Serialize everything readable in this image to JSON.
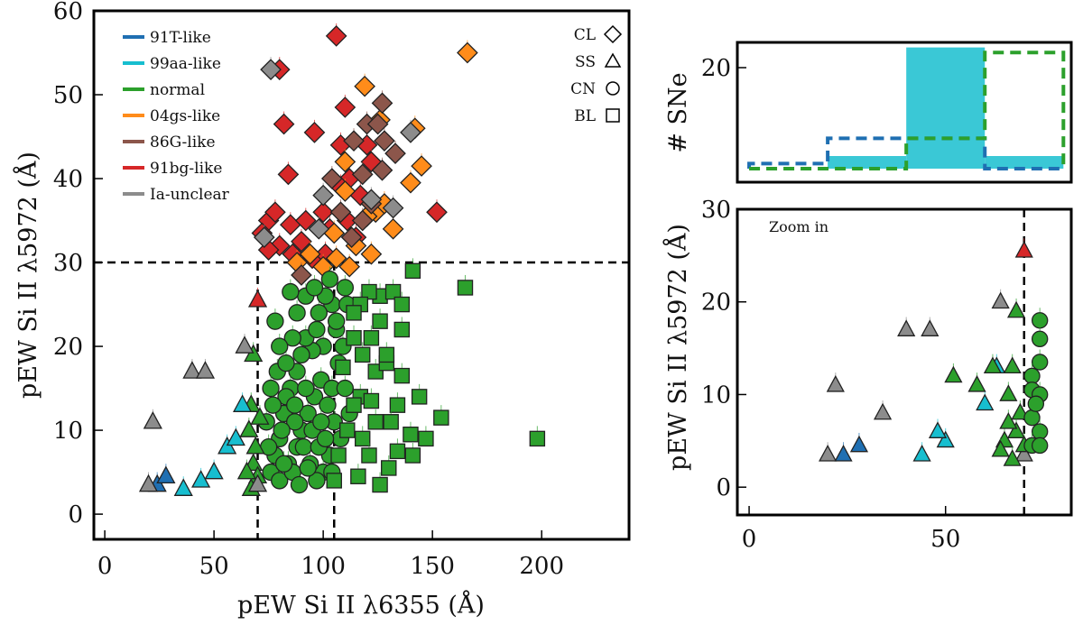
{
  "colors": {
    "91T-like": "#1f6fb2",
    "99aa-like": "#17becf",
    "normal": "#2ca02c",
    "04gs-like": "#ff8c1a",
    "86G-like": "#8c564b",
    "91bg-like": "#d62728",
    "Ia-unclear": "#8c8c8c"
  },
  "legend": {
    "classes": [
      "91T-like",
      "99aa-like",
      "normal",
      "04gs-like",
      "86G-like",
      "91bg-like",
      "Ia-unclear"
    ],
    "markers": [
      {
        "label": "CL",
        "shape": "diamond"
      },
      {
        "label": "SS",
        "shape": "triangle"
      },
      {
        "label": "CN",
        "shape": "circle"
      },
      {
        "label": "BL",
        "shape": "square"
      }
    ]
  },
  "chart_data": [
    {
      "id": "main",
      "type": "scatter",
      "title": "",
      "xlabel": "pEW Si II λ6355 (Å)",
      "ylabel": "pEW Si II λ5972 (Å)",
      "xlim": [
        -5,
        240
      ],
      "ylim": [
        -3,
        60
      ],
      "xticks": [
        0,
        50,
        100,
        150,
        200
      ],
      "yticks": [
        0,
        10,
        20,
        30,
        40,
        50,
        60
      ],
      "reference_lines": {
        "horizontal": [
          30
        ],
        "vertical": [
          70,
          105
        ]
      },
      "series": [
        {
          "name": "91bg-like",
          "marker": "diamond",
          "points": [
            [
              106,
              57
            ],
            [
              80,
              53
            ],
            [
              82,
              46.5
            ],
            [
              84,
              40.5
            ],
            [
              96,
              45.5
            ],
            [
              110,
              48.5
            ],
            [
              108,
              44
            ],
            [
              120,
              44
            ],
            [
              122,
              42
            ],
            [
              112,
              40
            ],
            [
              108,
              39
            ],
            [
              117,
              38
            ],
            [
              152,
              36
            ],
            [
              75,
              35
            ],
            [
              78,
              36
            ],
            [
              85,
              34.5
            ],
            [
              92,
              35
            ],
            [
              103,
              34
            ],
            [
              111,
              35
            ],
            [
              115,
              33
            ],
            [
              80,
              32
            ],
            [
              86,
              31
            ],
            [
              95,
              30.5
            ],
            [
              101,
              31
            ],
            [
              72,
              33.5
            ],
            [
              75,
              31.5
            ],
            [
              90,
              32.5
            ],
            [
              100,
              36
            ]
          ]
        },
        {
          "name": "04gs-like",
          "marker": "diamond",
          "points": [
            [
              166,
              55
            ],
            [
              119,
              51
            ],
            [
              126,
              47
            ],
            [
              142,
              46
            ],
            [
              145,
              41.5
            ],
            [
              110,
              42
            ],
            [
              140,
              39.5
            ],
            [
              124,
              36
            ],
            [
              128,
              37
            ],
            [
              110,
              38.5
            ],
            [
              120,
              35.5
            ],
            [
              105,
              33.5
            ],
            [
              115,
              32
            ],
            [
              132,
              34
            ],
            [
              100,
              29.5
            ],
            [
              88,
              30
            ],
            [
              106,
              30.5
            ],
            [
              112,
              29.5
            ],
            [
              122,
              31
            ],
            [
              94,
              31
            ]
          ]
        },
        {
          "name": "86G-like",
          "marker": "diamond",
          "points": [
            [
              127,
              49
            ],
            [
              120,
              46.5
            ],
            [
              125,
              46.5
            ],
            [
              128,
              44.5
            ],
            [
              133,
              43
            ],
            [
              114,
              44.5
            ],
            [
              118,
              40.5
            ],
            [
              104,
              40
            ],
            [
              127,
              41
            ],
            [
              122,
              37
            ],
            [
              108,
              36
            ],
            [
              90,
              28.5
            ],
            [
              118,
              35
            ],
            [
              113,
              33
            ]
          ]
        },
        {
          "name": "Ia-unclear",
          "marker": "diamond",
          "points": [
            [
              76,
              53
            ],
            [
              140,
              45.5
            ],
            [
              122,
              37.5
            ],
            [
              132,
              36.5
            ],
            [
              73,
              33
            ],
            [
              100,
              38
            ],
            [
              98,
              34
            ]
          ]
        },
        {
          "name": "normal",
          "marker": "circle",
          "points": [
            [
              110,
              27
            ],
            [
              104,
              25
            ],
            [
              98,
              24
            ],
            [
              106,
              22
            ],
            [
              100,
              20
            ],
            [
              95,
              19.5
            ],
            [
              92,
              21
            ],
            [
              88,
              17
            ],
            [
              85,
              15
            ],
            [
              82,
              12
            ],
            [
              80,
              9
            ],
            [
              78,
              7
            ],
            [
              76,
              5
            ],
            [
              80,
              4
            ],
            [
              84,
              6
            ],
            [
              88,
              8
            ],
            [
              90,
              10
            ],
            [
              93,
              12
            ],
            [
              96,
              14
            ],
            [
              99,
              16
            ],
            [
              102,
              13
            ],
            [
              105,
              11
            ],
            [
              108,
              9
            ],
            [
              103,
              7
            ],
            [
              100,
              5
            ],
            [
              97,
              4
            ],
            [
              94,
              6
            ],
            [
              91,
              8
            ],
            [
              87,
              11
            ],
            [
              83,
              14
            ],
            [
              79,
              17
            ],
            [
              76,
              15
            ],
            [
              74,
              11
            ],
            [
              77,
              13
            ],
            [
              81,
              10
            ],
            [
              86,
              5
            ],
            [
              89,
              3.5
            ],
            [
              92,
              15
            ],
            [
              95,
              10
            ],
            [
              98,
              8
            ],
            [
              101,
              9
            ],
            [
              104,
              15
            ],
            [
              107,
              18
            ],
            [
              110,
              15
            ],
            [
              112,
              12
            ],
            [
              109,
              20
            ],
            [
              106,
              23
            ],
            [
              101,
              26
            ],
            [
              97,
              22
            ],
            [
              90,
              19
            ],
            [
              86,
              21
            ],
            [
              83,
              18
            ],
            [
              80,
              20
            ],
            [
              78,
              23
            ],
            [
              88,
              24
            ],
            [
              92,
              26
            ],
            [
              85,
              26.5
            ],
            [
              96,
              27
            ],
            [
              103,
              28
            ],
            [
              111,
              25
            ],
            [
              99,
              11
            ],
            [
              93,
              5.5
            ],
            [
              87,
              13
            ],
            [
              75,
              8
            ],
            [
              82,
              6
            ],
            [
              104,
              5
            ]
          ]
        },
        {
          "name": "normal",
          "marker": "square",
          "points": [
            [
              141,
              29
            ],
            [
              126,
              26
            ],
            [
              121,
              26.5
            ],
            [
              132,
              26.5
            ],
            [
              117,
              25
            ],
            [
              136,
              25
            ],
            [
              126,
              23
            ],
            [
              136,
              22
            ],
            [
              114,
              24
            ],
            [
              122,
              21
            ],
            [
              124,
              17
            ],
            [
              114,
              21
            ],
            [
              129,
              18
            ],
            [
              109,
              17.5
            ],
            [
              118,
              19
            ],
            [
              136,
              16.5
            ],
            [
              134,
              13
            ],
            [
              117,
              14
            ],
            [
              122,
              13.5
            ],
            [
              124,
              11
            ],
            [
              144,
              14
            ],
            [
              114,
              13
            ],
            [
              131,
              11
            ],
            [
              140,
              9.5
            ],
            [
              147,
              9
            ],
            [
              154,
              11.5
            ],
            [
              141,
              7
            ],
            [
              130,
              5.5
            ],
            [
              126,
              3.5
            ],
            [
              118,
              9
            ],
            [
              107,
              7
            ],
            [
              111,
              10
            ],
            [
              116,
              4.5
            ],
            [
              165,
              27
            ],
            [
              198,
              9
            ],
            [
              129,
              19
            ],
            [
              134,
              7.5
            ],
            [
              121,
              7
            ],
            [
              105,
              4
            ]
          ]
        },
        {
          "name": "normal",
          "marker": "triangle",
          "points": [
            [
              68,
              19
            ],
            [
              67,
              13
            ],
            [
              66,
              10
            ],
            [
              69,
              8
            ],
            [
              68,
              6
            ],
            [
              70,
              4.5
            ],
            [
              65,
              5
            ],
            [
              67,
              3
            ],
            [
              71,
              11.5
            ]
          ]
        },
        {
          "name": "99aa-like",
          "marker": "triangle",
          "points": [
            [
              63,
              13
            ],
            [
              50,
              5
            ],
            [
              44,
              4
            ],
            [
              56,
              8
            ],
            [
              36,
              3
            ],
            [
              60,
              9
            ]
          ]
        },
        {
          "name": "91T-like",
          "marker": "triangle",
          "points": [
            [
              24,
              3.5
            ],
            [
              28,
              4.5
            ]
          ]
        },
        {
          "name": "Ia-unclear",
          "marker": "triangle",
          "points": [
            [
              20,
              3.5
            ],
            [
              22,
              11
            ],
            [
              40,
              17
            ],
            [
              46,
              17
            ],
            [
              64,
              20
            ],
            [
              70,
              3.5
            ]
          ]
        },
        {
          "name": "91bg-like",
          "marker": "triangle",
          "points": [
            [
              70,
              25.5
            ]
          ]
        }
      ]
    },
    {
      "id": "histogram",
      "type": "bar",
      "title": "",
      "xlabel": "",
      "ylabel": "# SNe",
      "ylim": [
        0,
        25
      ],
      "yticks": [
        20
      ],
      "bin_edges": [
        0,
        20,
        40,
        60,
        80
      ],
      "series": [
        {
          "name": "99aa-like",
          "style": "filled",
          "values": [
            0,
            2.5,
            24,
            2.5
          ]
        },
        {
          "name": "91T-like",
          "style": "dashed-outline",
          "values": [
            1,
            6,
            6,
            0
          ]
        },
        {
          "name": "normal",
          "style": "dashed-outline",
          "values": [
            0,
            0,
            6,
            23
          ]
        }
      ]
    },
    {
      "id": "zoom",
      "type": "scatter",
      "title": "Zoom in",
      "xlabel": "",
      "ylabel": "pEW Si II λ5972 (Å)",
      "xlim": [
        -3,
        82
      ],
      "ylim": [
        -3,
        30
      ],
      "xticks": [
        0,
        50
      ],
      "yticks": [
        0,
        10,
        20,
        30
      ],
      "reference_lines": {
        "vertical": [
          70
        ]
      },
      "series": [
        {
          "name": "Ia-unclear",
          "marker": "triangle",
          "points": [
            [
              22,
              11
            ],
            [
              20,
              3.5
            ],
            [
              40,
              17
            ],
            [
              46,
              17
            ],
            [
              70,
              3.5
            ],
            [
              64,
              20
            ],
            [
              34,
              8
            ]
          ]
        },
        {
          "name": "91T-like",
          "marker": "triangle",
          "points": [
            [
              24,
              3.5
            ],
            [
              28,
              4.5
            ]
          ]
        },
        {
          "name": "99aa-like",
          "marker": "triangle",
          "points": [
            [
              63,
              13
            ],
            [
              50,
              5
            ],
            [
              44,
              3.5
            ],
            [
              48,
              6
            ],
            [
              60,
              9
            ]
          ]
        },
        {
          "name": "normal",
          "marker": "triangle",
          "points": [
            [
              68,
              19
            ],
            [
              67,
              13
            ],
            [
              66,
              10
            ],
            [
              69,
              8
            ],
            [
              68,
              6
            ],
            [
              70,
              4.5
            ],
            [
              65,
              5
            ],
            [
              67,
              3
            ],
            [
              52,
              12
            ],
            [
              58,
              11
            ],
            [
              62,
              13
            ],
            [
              64,
              4
            ],
            [
              66,
              7
            ]
          ]
        },
        {
          "name": "normal",
          "marker": "circle",
          "points": [
            [
              74,
              18
            ],
            [
              74,
              16
            ],
            [
              74,
              13.5
            ],
            [
              72,
              12
            ],
            [
              72,
              10.5
            ],
            [
              74,
              10
            ],
            [
              72,
              7.5
            ],
            [
              74,
              6
            ],
            [
              72,
              4.5
            ],
            [
              74,
              4.5
            ],
            [
              73,
              9
            ]
          ]
        },
        {
          "name": "91bg-like",
          "marker": "triangle",
          "points": [
            [
              70,
              25.5
            ]
          ]
        }
      ]
    }
  ]
}
